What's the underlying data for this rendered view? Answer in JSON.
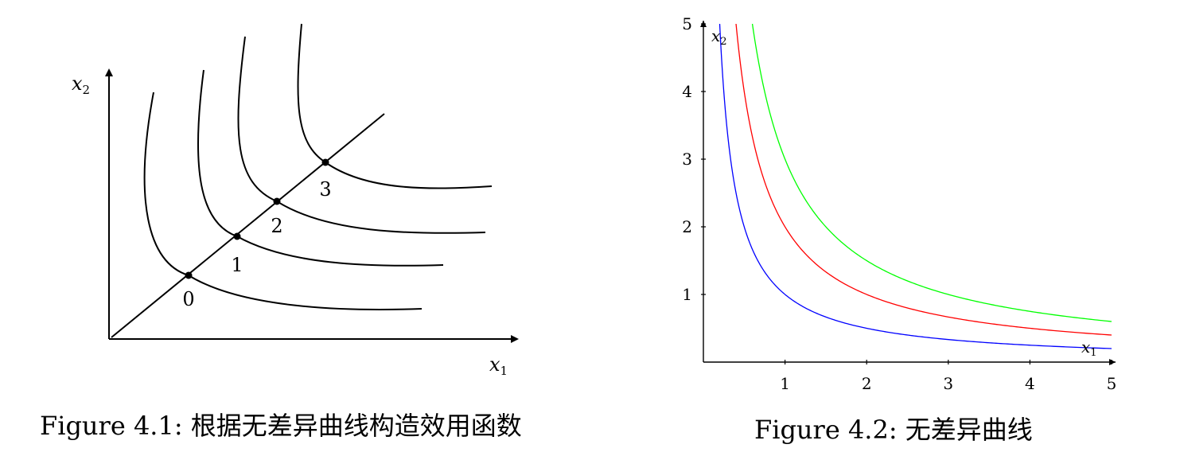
{
  "figures": [
    {
      "caption": "Figure 4.1: 根据无差异曲线构造效用函数"
    },
    {
      "caption": "Figure 4.2: 无差异曲线"
    }
  ],
  "chart_data": [
    {
      "type": "line",
      "xlabel": "x",
      "xlabel_sub": "1",
      "ylabel": "x",
      "ylabel_sub": "2",
      "grid": false,
      "line_color": "#000000",
      "point_labels": [
        "0",
        "1",
        "2",
        "3"
      ],
      "curve_count": 4
    },
    {
      "type": "line",
      "xlabel": "x",
      "xlabel_sub": "1",
      "ylabel": "x",
      "ylabel_sub": "2",
      "xlim": [
        0,
        5
      ],
      "ylim": [
        0,
        5
      ],
      "xticks": [
        "1",
        "2",
        "3",
        "4",
        "5"
      ],
      "yticks": [
        "1",
        "2",
        "3",
        "4",
        "5"
      ],
      "grid": false,
      "series": [
        {
          "k": 1,
          "color": "#0000ff"
        },
        {
          "k": 2,
          "color": "#ff0000"
        },
        {
          "k": 3,
          "color": "#00ff00"
        }
      ]
    }
  ]
}
